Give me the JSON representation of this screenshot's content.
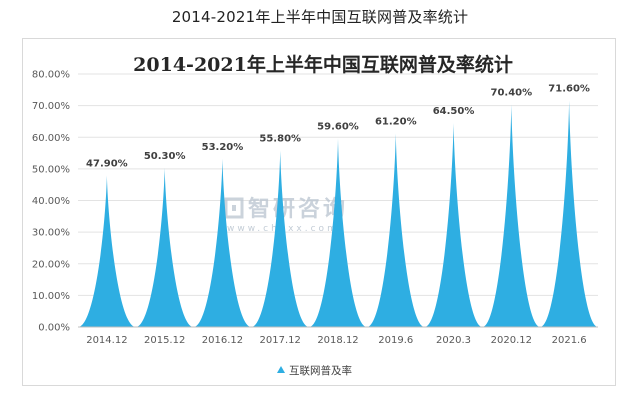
{
  "page": {
    "heading": "2014-2021年上半年中国互联网普及率统计"
  },
  "watermark": {
    "brand": "智研咨询",
    "url": "www.chyxx.com"
  },
  "colors": {
    "series": "#2eaee2",
    "gridline": "#e3e3e3",
    "axis": "#bfbfbf"
  },
  "chart_data": {
    "type": "area",
    "title": "2014-2021年上半年中国互联网普及率统计",
    "categories": [
      "2014.12",
      "2015.12",
      "2016.12",
      "2017.12",
      "2018.12",
      "2019.6",
      "2020.3",
      "2020.12",
      "2021.6"
    ],
    "series": [
      {
        "name": "互联网普及率",
        "values": [
          47.9,
          50.3,
          53.2,
          55.8,
          59.6,
          61.2,
          64.5,
          70.4,
          71.6
        ],
        "labels": [
          "47.90%",
          "50.30%",
          "53.20%",
          "55.80%",
          "59.60%",
          "61.20%",
          "64.50%",
          "70.40%",
          "71.60%"
        ]
      }
    ],
    "y_ticks": [
      "0.00%",
      "10.00%",
      "20.00%",
      "30.00%",
      "40.00%",
      "50.00%",
      "60.00%",
      "70.00%",
      "80.00%"
    ],
    "ylim": [
      0,
      80
    ],
    "grid": true,
    "legend_position": "bottom"
  }
}
